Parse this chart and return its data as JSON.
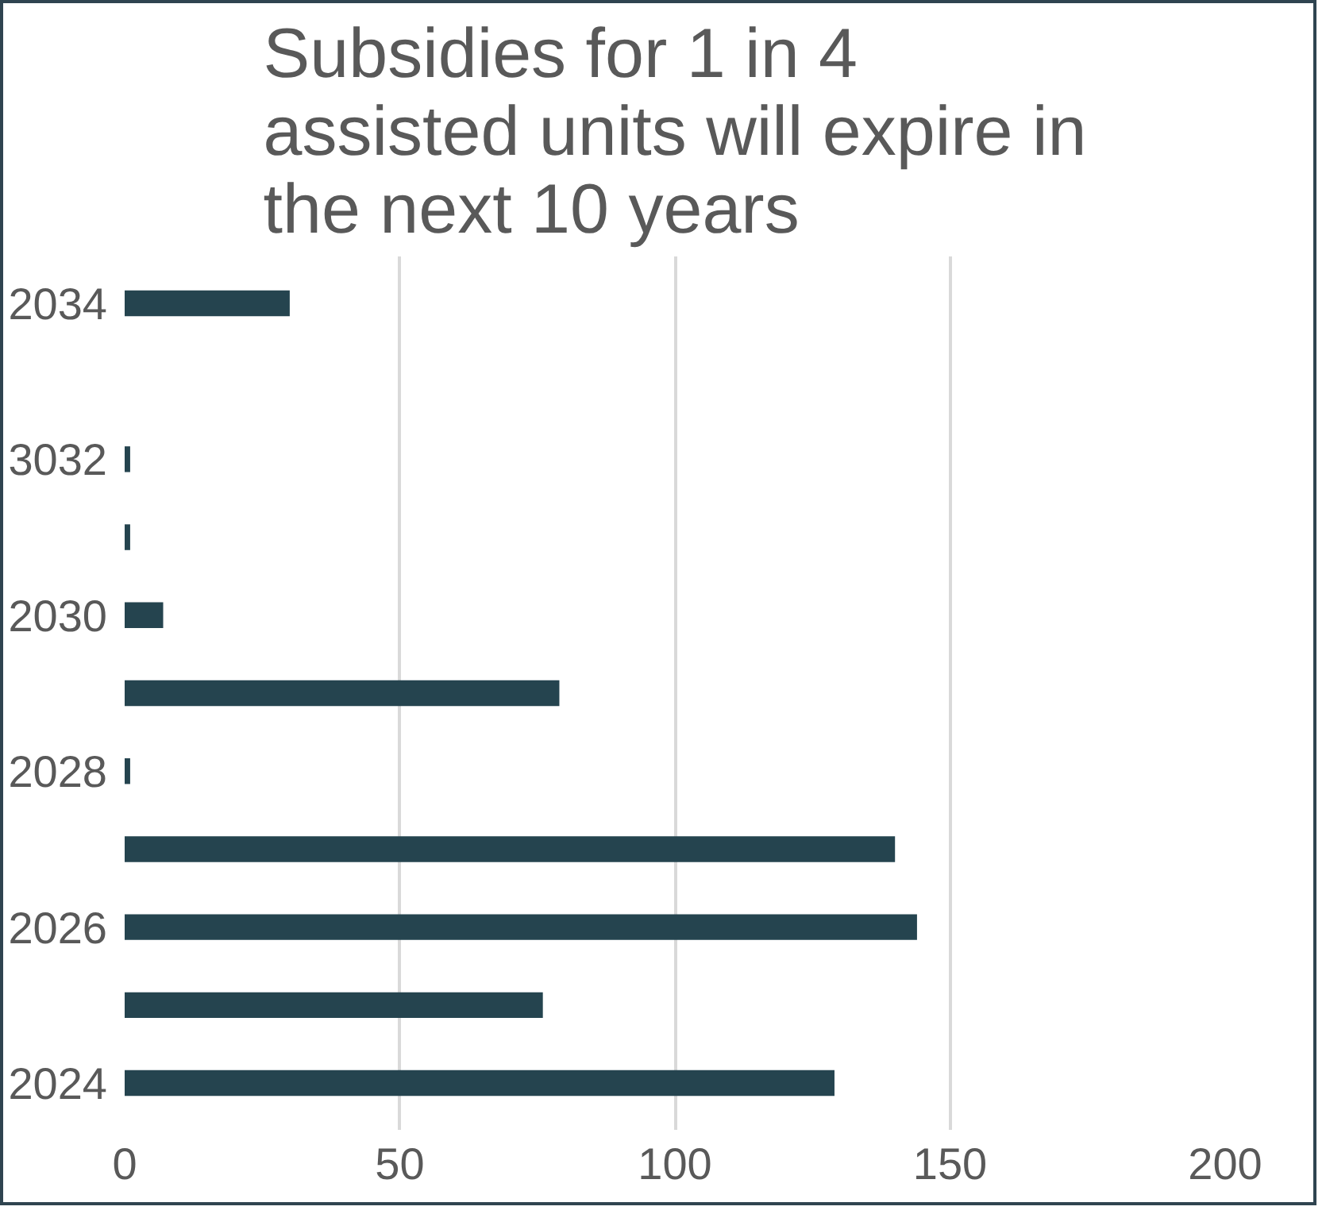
{
  "chart_data": {
    "type": "bar",
    "orientation": "horizontal",
    "title": "Subsidies for 1 in 4\nassisted units will expire in\nthe next 10 years",
    "categories": [
      "2034",
      null,
      "3032",
      null,
      "2030",
      null,
      "2028",
      null,
      "2026",
      null,
      "2024"
    ],
    "values": [
      30,
      0,
      1,
      1,
      7,
      79,
      1,
      140,
      144,
      76,
      129
    ],
    "color": "#25444f",
    "xlim": [
      0,
      200
    ],
    "xticks": [
      0,
      50,
      100,
      150,
      200
    ],
    "grid": "x"
  }
}
